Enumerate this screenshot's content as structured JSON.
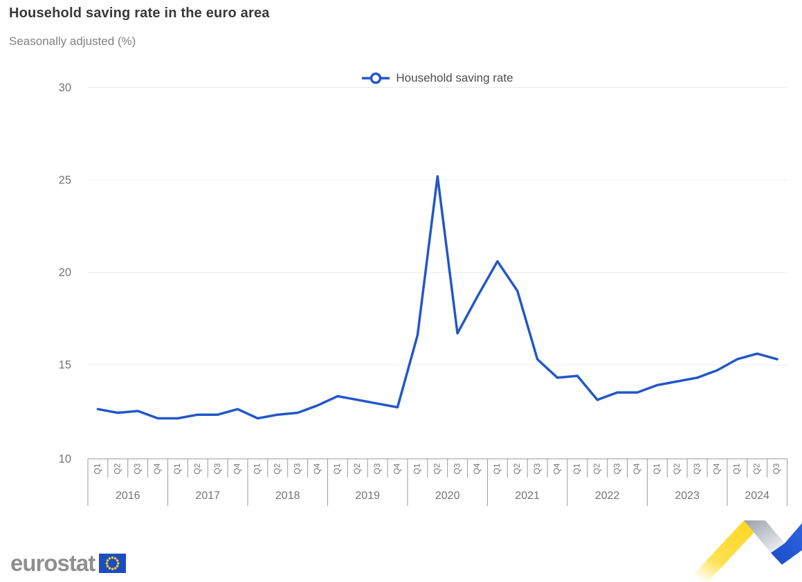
{
  "header": {
    "title": "Household saving rate in the euro area",
    "subtitle": "Seasonally adjusted (%)"
  },
  "legend": {
    "label": "Household saving rate"
  },
  "chart_data": {
    "type": "line",
    "title": "Household saving rate in the euro area",
    "subtitle": "Seasonally adjusted (%)",
    "ylabel": "",
    "xlabel": "",
    "ylim": [
      10,
      30
    ],
    "yticks": [
      10,
      15,
      20,
      25,
      30
    ],
    "grid": true,
    "legend_position": "top-center",
    "line_color": "#2257c8",
    "years": [
      {
        "label": "2016",
        "quarters": [
          "Q1",
          "Q2",
          "Q3",
          "Q4"
        ]
      },
      {
        "label": "2017",
        "quarters": [
          "Q1",
          "Q2",
          "Q3",
          "Q4"
        ]
      },
      {
        "label": "2018",
        "quarters": [
          "Q1",
          "Q2",
          "Q3",
          "Q4"
        ]
      },
      {
        "label": "2019",
        "quarters": [
          "Q1",
          "Q2",
          "Q3",
          "Q4"
        ]
      },
      {
        "label": "2020",
        "quarters": [
          "Q1",
          "Q2",
          "Q3",
          "Q4"
        ]
      },
      {
        "label": "2021",
        "quarters": [
          "Q1",
          "Q2",
          "Q3",
          "Q4"
        ]
      },
      {
        "label": "2022",
        "quarters": [
          "Q1",
          "Q2",
          "Q3",
          "Q4"
        ]
      },
      {
        "label": "2023",
        "quarters": [
          "Q1",
          "Q2",
          "Q3",
          "Q4"
        ]
      },
      {
        "label": "2024",
        "quarters": [
          "Q1",
          "Q2",
          "Q3"
        ]
      }
    ],
    "series": [
      {
        "name": "Household saving rate",
        "values": [
          12.6,
          12.4,
          12.5,
          12.1,
          12.1,
          12.3,
          12.3,
          12.6,
          12.1,
          12.3,
          12.4,
          12.8,
          13.3,
          13.1,
          12.9,
          12.7,
          16.6,
          25.2,
          16.7,
          18.7,
          20.6,
          19.0,
          15.3,
          14.3,
          14.4,
          13.1,
          13.5,
          13.5,
          13.9,
          14.1,
          14.3,
          14.7,
          15.3,
          15.6,
          15.3
        ]
      }
    ]
  },
  "footer": {
    "logo_text": "eurostat"
  },
  "colors": {
    "line": "#2257c8",
    "grid": "#e6e9ee",
    "axis": "#9a9a9a",
    "tick_label": "#757575",
    "legend_text": "#4d4d4d",
    "title": "#383838",
    "subtitle": "#818181",
    "logo_gray": "#8f8f8f",
    "eu_flag_blue": "#1d4cc0",
    "eu_star_yellow": "#ffd617",
    "ribbon_yellow": "#ffd617",
    "ribbon_gray": "#b6bac2",
    "ribbon_blue": "#1a4dc8"
  }
}
